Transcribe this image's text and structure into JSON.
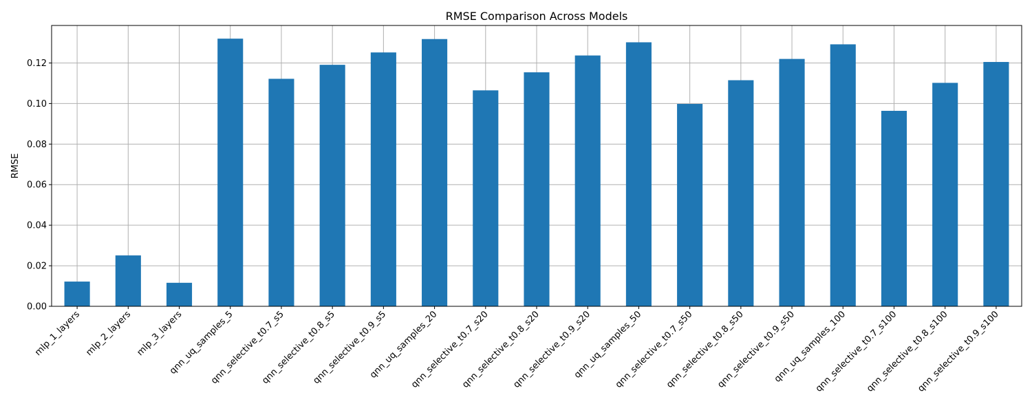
{
  "chart_data": {
    "type": "bar",
    "title": "RMSE Comparison Across Models",
    "xlabel": "",
    "ylabel": "RMSE",
    "ylim": [
      0,
      0.1385
    ],
    "yticks": [
      "0.00",
      "0.02",
      "0.04",
      "0.06",
      "0.08",
      "0.10",
      "0.12"
    ],
    "grid": true,
    "categories": [
      "mlp_1_layers",
      "mlp_2_layers",
      "mlp_3_layers",
      "qnn_uq_samples_5",
      "qnn_selective_t0.7_s5",
      "qnn_selective_t0.8_s5",
      "qnn_selective_t0.9_s5",
      "qnn_uq_samples_20",
      "qnn_selective_t0.7_s20",
      "qnn_selective_t0.8_s20",
      "qnn_selective_t0.9_s20",
      "qnn_uq_samples_50",
      "qnn_selective_t0.7_s50",
      "qnn_selective_t0.8_s50",
      "qnn_selective_t0.9_s50",
      "qnn_uq_samples_100",
      "qnn_selective_t0.7_s100",
      "qnn_selective_t0.8_s100",
      "qnn_selective_t0.9_s100"
    ],
    "values": [
      0.0122,
      0.0251,
      0.0116,
      0.132,
      0.1122,
      0.1191,
      0.1252,
      0.1318,
      0.1065,
      0.1154,
      0.1237,
      0.1302,
      0.0998,
      0.1115,
      0.122,
      0.1292,
      0.0964,
      0.1102,
      0.1205
    ],
    "bar_color": "#1f77b4",
    "grid_color": "#b0b0b0"
  }
}
